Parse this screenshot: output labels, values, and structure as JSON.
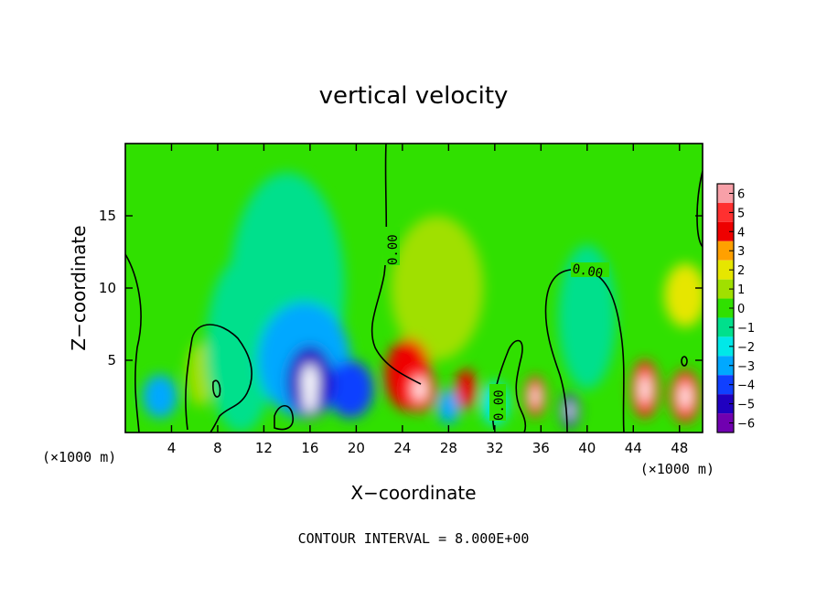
{
  "chart_data": {
    "type": "heatmap",
    "title": "vertical velocity",
    "xlabel": "X−coordinate",
    "ylabel": "Z−coordinate",
    "x_unit_left": "(×1000 m)",
    "x_unit_right": "(×1000 m)",
    "xlim": [
      0,
      50
    ],
    "ylim": [
      0,
      20
    ],
    "x_ticks": [
      4,
      8,
      12,
      16,
      20,
      24,
      28,
      32,
      36,
      40,
      44,
      48
    ],
    "y_ticks": [
      5,
      10,
      15
    ],
    "x_tick_labels": [
      "4",
      "8",
      "12",
      "16",
      "20",
      "24",
      "28",
      "32",
      "36",
      "40",
      "44",
      "48"
    ],
    "y_tick_labels": [
      "5",
      "10",
      "15"
    ],
    "colorbar": {
      "levels": [
        6,
        5,
        4,
        3,
        2,
        1,
        0,
        -1,
        -2,
        -3,
        -4,
        -5,
        -6
      ],
      "labels": [
        "6",
        "5",
        "4",
        "3",
        "2",
        "1",
        "0",
        "−1",
        "−2",
        "−3",
        "−4",
        "−5",
        "−6"
      ],
      "colors": [
        "#f8a0a8",
        "#ff3030",
        "#ee0000",
        "#ffa000",
        "#e6e600",
        "#a0e000",
        "#30e000",
        "#00e08c",
        "#00e8e8",
        "#00a8ff",
        "#1040ff",
        "#2000c0",
        "#7000b0"
      ]
    },
    "contour_labels": [
      "0.00",
      "0.00",
      "0.00"
    ],
    "footer": "CONTOUR INTERVAL = 8.000E+00",
    "cells": [
      {
        "x": 3,
        "z": 2.5,
        "v": -3,
        "rx": 1.5,
        "rz": 1.5
      },
      {
        "x": 6.5,
        "z": 4,
        "v": 1,
        "rx": 1.2,
        "rz": 2.2
      },
      {
        "x": 10,
        "z": 6,
        "v": -1,
        "rx": 3,
        "rz": 6
      },
      {
        "x": 14,
        "z": 10,
        "v": -1,
        "rx": 5,
        "rz": 8
      },
      {
        "x": 15.5,
        "z": 5,
        "v": -3,
        "rx": 4,
        "rz": 4
      },
      {
        "x": 16,
        "z": 3.5,
        "v": -5,
        "rx": 2,
        "rz": 2.5
      },
      {
        "x": 16,
        "z": 2.5,
        "v": -6,
        "rx": 0.6,
        "rz": 1.2
      },
      {
        "x": 19.5,
        "z": 3,
        "v": -4,
        "rx": 2,
        "rz": 2
      },
      {
        "x": 24.5,
        "z": 4,
        "v": 4,
        "rx": 2,
        "rz": 2.5
      },
      {
        "x": 25.5,
        "z": 3,
        "v": 5,
        "rx": 1.4,
        "rz": 1.6
      },
      {
        "x": 28,
        "z": 1.8,
        "v": -3,
        "rx": 1,
        "rz": 1.2
      },
      {
        "x": 29.5,
        "z": 3,
        "v": 4,
        "rx": 0.9,
        "rz": 1.4
      },
      {
        "x": 32,
        "z": 2,
        "v": -2,
        "rx": 1.2,
        "rz": 1.5
      },
      {
        "x": 35.5,
        "z": 2.5,
        "v": 5,
        "rx": 0.9,
        "rz": 1.4
      },
      {
        "x": 38.5,
        "z": 1.5,
        "v": -5,
        "rx": 0.8,
        "rz": 1.2
      },
      {
        "x": 40,
        "z": 8,
        "v": -1,
        "rx": 2.5,
        "rz": 5
      },
      {
        "x": 45,
        "z": 3,
        "v": 5,
        "rx": 1.2,
        "rz": 2
      },
      {
        "x": 48.5,
        "z": 2.5,
        "v": 5,
        "rx": 1.3,
        "rz": 1.8
      },
      {
        "x": 48.5,
        "z": 9.5,
        "v": 2,
        "rx": 1.8,
        "rz": 2.2
      },
      {
        "x": 27,
        "z": 10,
        "v": 1,
        "rx": 4,
        "rz": 5
      }
    ]
  }
}
